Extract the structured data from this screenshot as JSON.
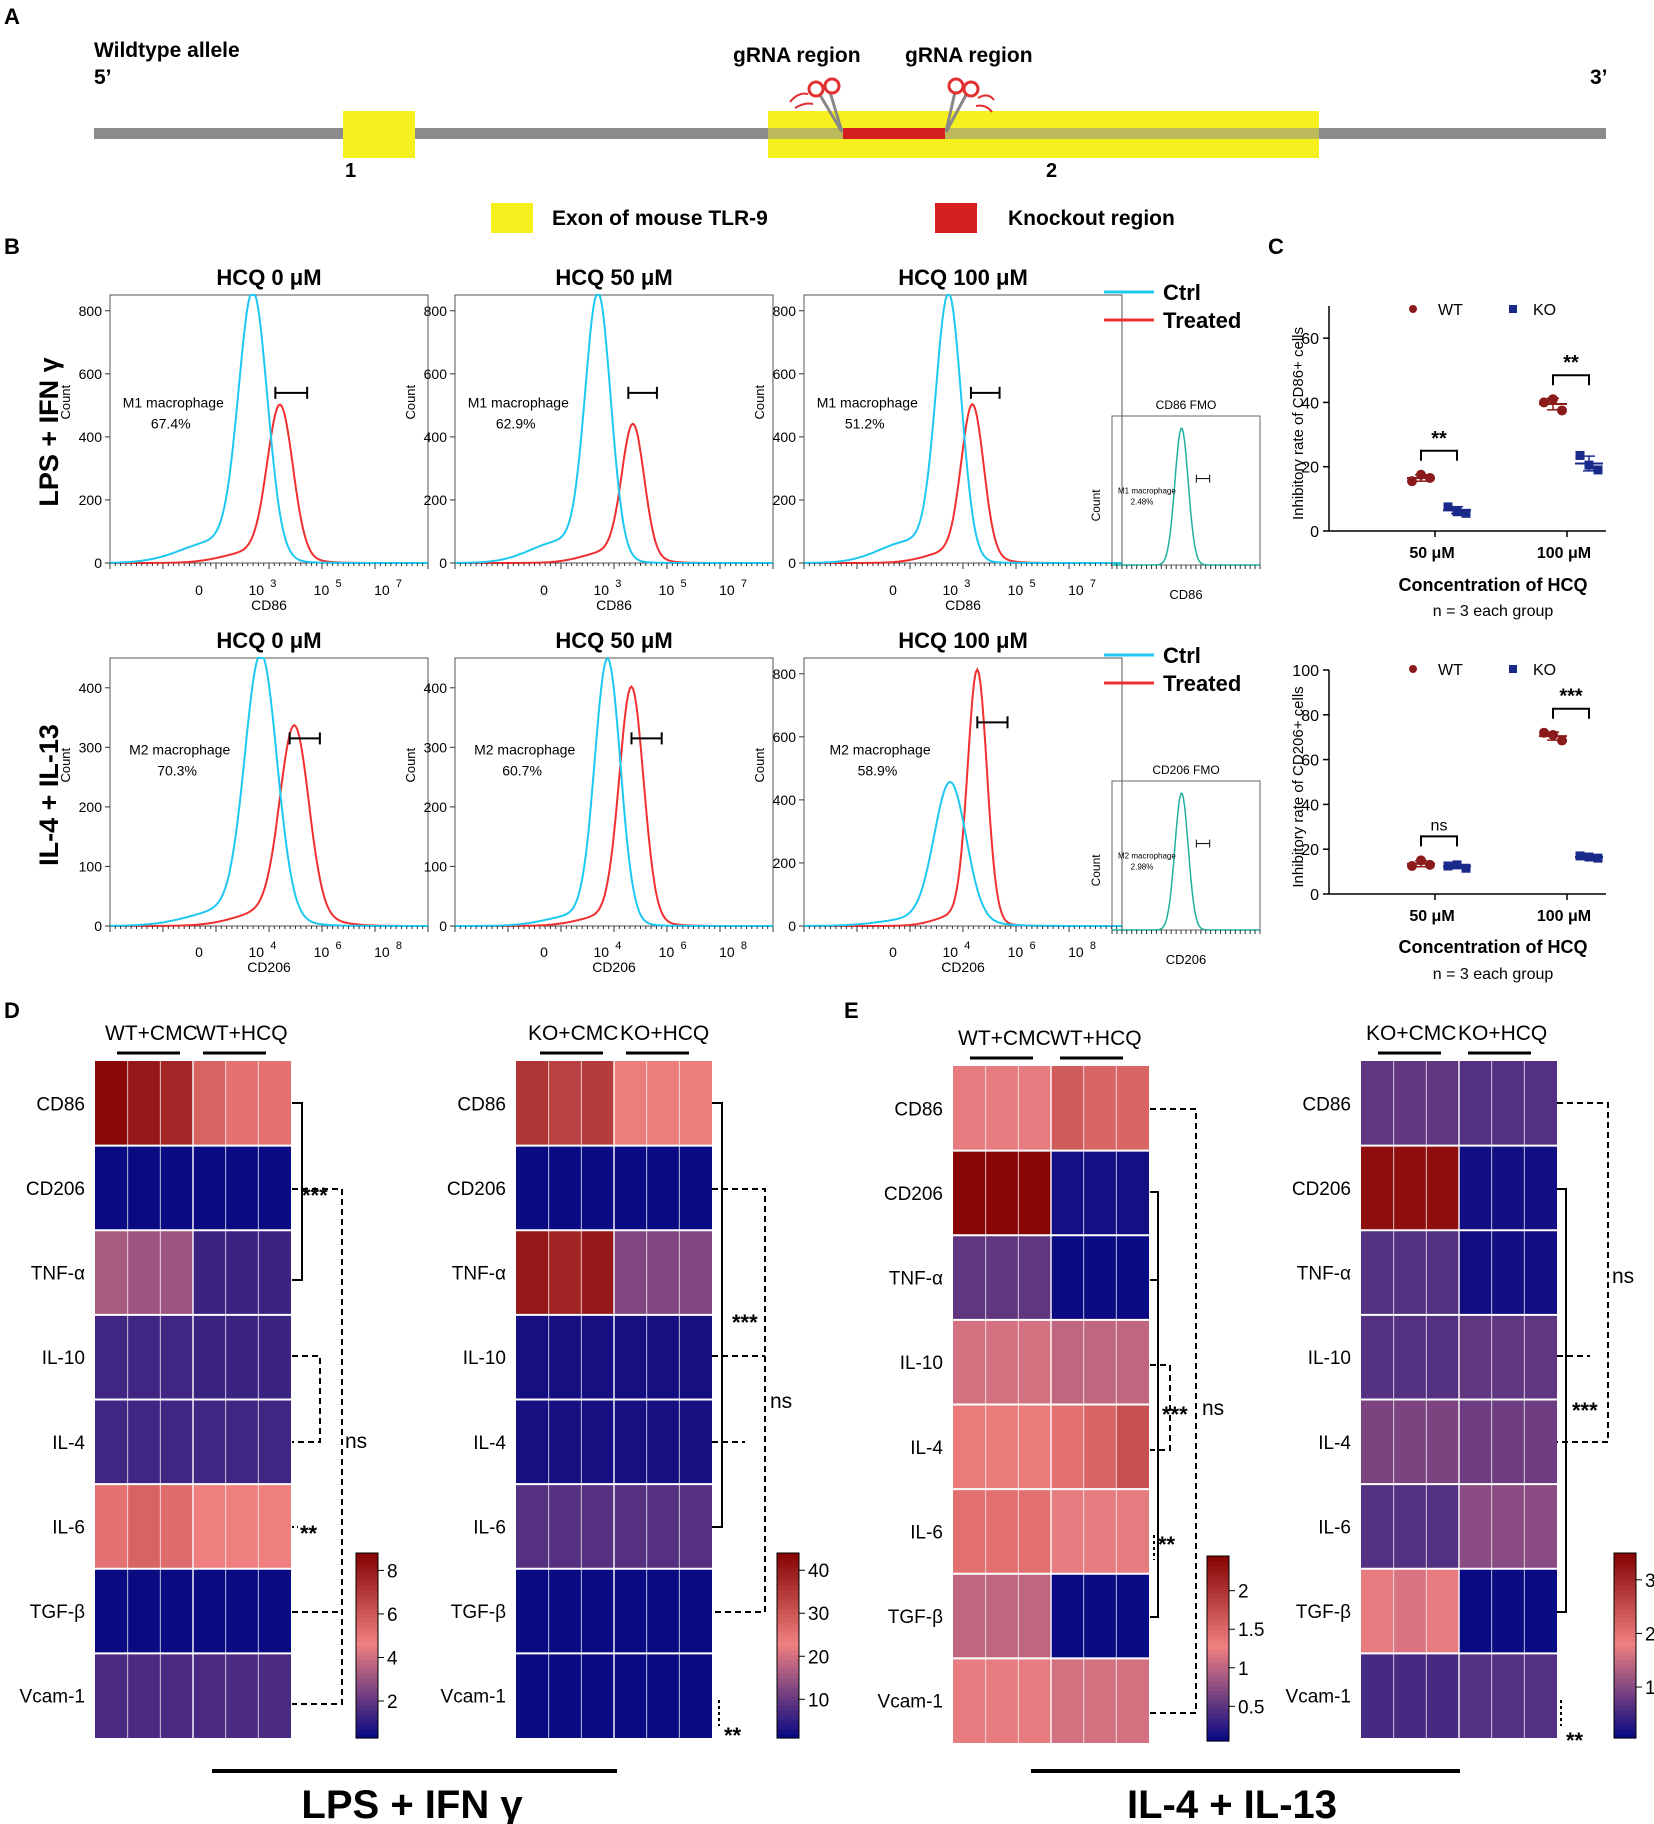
{
  "panel_letters": {
    "a": "A",
    "b": "B",
    "c": "C",
    "d": "D",
    "e": "E"
  },
  "panel_a": {
    "allele_label": "Wildtype allele",
    "end5": "5’",
    "end3": "3’",
    "grna_label_1": "gRNA region",
    "grna_label_2": "gRNA region",
    "exon_number_1": "1",
    "exon_number_2": "2",
    "legend_exon": "Exon of mouse TLR-9",
    "legend_knockout": "Knockout region",
    "colors": {
      "backbone": "#8c8c8c",
      "exon": "#f5f01e",
      "knockout": "#d62020",
      "scissors": "#e03030"
    }
  },
  "panel_b": {
    "colors": {
      "ctrl": "#1ec8f0",
      "treated": "#f03030",
      "fmo": "#20b0a0"
    },
    "legend": {
      "ctrl": "Ctrl",
      "treated": "Treated"
    },
    "row_labels": [
      "LPS + IFN γ",
      "IL-4 + IL-13"
    ],
    "count_label": "Count",
    "rows": [
      {
        "marker": "CD86",
        "titles": [
          "HCQ 0 μM",
          "HCQ 50 μM",
          "HCQ 100 μM"
        ],
        "gate_names": [
          "M1 macrophage",
          "M1 macrophage",
          "M1 macrophage"
        ],
        "gate_pcts": [
          "67.4%",
          "62.9%",
          "51.2%"
        ],
        "y_ticks": [
          "0",
          "200",
          "400",
          "600",
          "800"
        ],
        "x_ticks": [
          "0",
          "10",
          "10",
          "10"
        ],
        "x_exps": [
          "",
          "3",
          "5",
          "7"
        ],
        "fmo": {
          "title": "CD86 FMO",
          "gate_name": "M1 macrophage",
          "gate_pct": "2.48%",
          "xlabel": "CD86",
          "ylabel": "Count"
        }
      },
      {
        "marker": "CD206",
        "titles": [
          "HCQ 0 μM",
          "HCQ 50 μM",
          "HCQ 100 μM"
        ],
        "gate_names": [
          "M2 macrophage",
          "M2 macrophage",
          "M2 macrophage"
        ],
        "gate_pcts": [
          "70.3%",
          "60.7%",
          "58.9%"
        ],
        "y_ticks_a": [
          "0",
          "100",
          "200",
          "300",
          "400"
        ],
        "y_ticks_b": [
          "0",
          "200",
          "400",
          "600",
          "800"
        ],
        "x_ticks": [
          "0",
          "10",
          "10",
          "10"
        ],
        "x_exps": [
          "",
          "4",
          "6",
          "8"
        ],
        "fmo": {
          "title": "CD206 FMO",
          "gate_name": "M2 macrophage",
          "gate_pct": "2.98%",
          "xlabel": "CD206",
          "ylabel": "Count"
        }
      }
    ]
  },
  "panel_d_labels": {
    "wt_cmc": "WT+CMC",
    "wt_hcq": "WT+HCQ",
    "ko_cmc": "KO+CMC",
    "ko_hcq": "KO+HCQ"
  },
  "heatmap_rows": [
    "CD86",
    "CD206",
    "TNF-α",
    "IL-10",
    "IL-4",
    "IL-6",
    "TGF-β",
    "Vcam-1"
  ],
  "sig": {
    "three": "***",
    "two": "**",
    "ns": "ns"
  },
  "condition_labels": {
    "lps": "LPS + IFN γ",
    "il4": "IL-4 + IL-13"
  },
  "heatmap_colors": {
    "low": "#0a0a82",
    "mid": "#f08080",
    "high": "#820000"
  },
  "chart_data": [
    {
      "type": "scatter",
      "title": "Inhibitory rate of CD86+ cells (panel C, top)",
      "ylabel": "Inhibitory rate of CD86+ cells",
      "xlabel": "Concentration of HCQ",
      "note": "n = 3 each group",
      "categories": [
        "50 μM",
        "100 μM"
      ],
      "ylim": [
        0,
        70
      ],
      "y_ticks": [
        0,
        20,
        40,
        60
      ],
      "series": [
        {
          "name": "WT",
          "color": "#8b1a1a",
          "values": [
            [
              15.5,
              17.5,
              16.5
            ],
            [
              40.0,
              41.0,
              37.5
            ]
          ],
          "means": [
            16.5,
            39.5
          ]
        },
        {
          "name": "KO",
          "color": "#1a2a8b",
          "values": [
            [
              7.5,
              6.0,
              5.5
            ],
            [
              23.5,
              20.5,
              19.0
            ]
          ],
          "means": [
            6.5,
            21.0
          ]
        }
      ],
      "significance": [
        "**",
        "**"
      ]
    },
    {
      "type": "scatter",
      "title": "Inhibitory rate of CD206+ cells (panel C, bottom)",
      "ylabel": "Inhibitory rate of CD206+ cells",
      "xlabel": "Concentration of HCQ",
      "note": "n = 3 each group",
      "categories": [
        "50 μM",
        "100 μM"
      ],
      "ylim": [
        0,
        100
      ],
      "y_ticks": [
        0,
        20,
        40,
        60,
        80,
        100
      ],
      "series": [
        {
          "name": "WT",
          "color": "#8b1a1a",
          "values": [
            [
              12.5,
              15.0,
              13.0
            ],
            [
              72.0,
              71.0,
              68.5
            ]
          ],
          "means": [
            13.5,
            70.5
          ]
        },
        {
          "name": "KO",
          "color": "#1a2a8b",
          "values": [
            [
              12.5,
              13.0,
              11.5
            ],
            [
              17.0,
              16.5,
              16.0
            ]
          ],
          "means": [
            12.3,
            16.5
          ]
        }
      ],
      "significance": [
        "ns",
        "***"
      ]
    },
    {
      "type": "heatmap",
      "title": "WT LPS + IFN γ (panel D, left)",
      "columns": [
        "WT+CMC",
        "WT+CMC",
        "WT+CMC",
        "WT+HCQ",
        "WT+HCQ",
        "WT+HCQ"
      ],
      "rows": [
        "CD86",
        "CD206",
        "TNF-α",
        "IL-10",
        "IL-4",
        "IL-6",
        "TGF-β",
        "Vcam-1"
      ],
      "values": [
        [
          8.5,
          8.0,
          7.5,
          5.5,
          5.0,
          5.0
        ],
        [
          0.3,
          0.3,
          0.3,
          0.3,
          0.3,
          0.3
        ],
        [
          3.2,
          3.0,
          3.0,
          1.2,
          1.2,
          1.2
        ],
        [
          1.3,
          1.3,
          1.3,
          1.2,
          1.2,
          1.2
        ],
        [
          1.3,
          1.3,
          1.3,
          1.3,
          1.3,
          1.3
        ],
        [
          5.0,
          5.5,
          5.2,
          4.6,
          4.6,
          4.6
        ],
        [
          0.3,
          0.3,
          0.3,
          0.3,
          0.3,
          0.3
        ],
        [
          1.5,
          1.5,
          1.5,
          1.5,
          1.5,
          1.5
        ]
      ],
      "colorbar": {
        "min": 0.3,
        "max": 8.8,
        "ticks": [
          2,
          4,
          6,
          8
        ]
      }
    },
    {
      "type": "heatmap",
      "title": "KO LPS + IFN γ (panel D, right)",
      "columns": [
        "KO+CMC",
        "KO+CMC",
        "KO+CMC",
        "KO+HCQ",
        "KO+HCQ",
        "KO+HCQ"
      ],
      "rows": [
        "CD86",
        "CD206",
        "TNF-α",
        "IL-10",
        "IL-4",
        "IL-6",
        "TGF-β",
        "Vcam-1"
      ],
      "values": [
        [
          35,
          33,
          34,
          23,
          23,
          23
        ],
        [
          1,
          1,
          1,
          1,
          1,
          1
        ],
        [
          40,
          38,
          40,
          12,
          12,
          12
        ],
        [
          2,
          2,
          2,
          2,
          2,
          2
        ],
        [
          2,
          2,
          2,
          2,
          2,
          2
        ],
        [
          8,
          8,
          8,
          8,
          8,
          8
        ],
        [
          1,
          1,
          1,
          1,
          1,
          1
        ],
        [
          1,
          1,
          1,
          1,
          1,
          1
        ]
      ],
      "colorbar": {
        "min": 1,
        "max": 44,
        "ticks": [
          10,
          20,
          30,
          40
        ]
      }
    },
    {
      "type": "heatmap",
      "title": "WT IL-4 + IL-13 (panel E, left)",
      "columns": [
        "WT+CMC",
        "WT+CMC",
        "WT+CMC",
        "WT+HCQ",
        "WT+HCQ",
        "WT+HCQ"
      ],
      "rows": [
        "CD86",
        "CD206",
        "TNF-α",
        "IL-10",
        "IL-4",
        "IL-6",
        "TGF-β",
        "Vcam-1"
      ],
      "values": [
        [
          1.2,
          1.2,
          1.2,
          1.6,
          1.5,
          1.5
        ],
        [
          2.4,
          2.4,
          2.4,
          0.1,
          0.1,
          0.1
        ],
        [
          0.5,
          0.5,
          0.5,
          0.05,
          0.05,
          0.05
        ],
        [
          1.1,
          1.1,
          1.1,
          1.0,
          1.0,
          1.0
        ],
        [
          1.3,
          1.3,
          1.3,
          1.4,
          1.5,
          1.7
        ],
        [
          1.4,
          1.4,
          1.4,
          1.2,
          1.2,
          1.2
        ],
        [
          1.0,
          1.0,
          1.0,
          0.05,
          0.05,
          0.05
        ],
        [
          1.2,
          1.2,
          1.2,
          1.1,
          1.1,
          1.1
        ]
      ],
      "colorbar": {
        "min": 0.05,
        "max": 2.45,
        "ticks": [
          0.5,
          1.0,
          1.5,
          2.0
        ]
      }
    },
    {
      "type": "heatmap",
      "title": "KO IL-4 + IL-13 (panel E, right)",
      "columns": [
        "KO+CMC",
        "KO+CMC",
        "KO+CMC",
        "KO+HCQ",
        "KO+HCQ",
        "KO+HCQ"
      ],
      "rows": [
        "CD86",
        "CD206",
        "TNF-α",
        "IL-10",
        "IL-4",
        "IL-6",
        "TGF-β",
        "Vcam-1"
      ],
      "values": [
        [
          0.7,
          0.7,
          0.7,
          0.6,
          0.6,
          0.6
        ],
        [
          3.3,
          3.3,
          3.3,
          0.1,
          0.1,
          0.1
        ],
        [
          0.6,
          0.6,
          0.6,
          0.1,
          0.1,
          0.1
        ],
        [
          0.6,
          0.6,
          0.6,
          0.7,
          0.7,
          0.7
        ],
        [
          0.9,
          0.9,
          0.9,
          0.8,
          0.8,
          0.8
        ],
        [
          0.6,
          0.6,
          0.6,
          1.0,
          1.0,
          1.0
        ],
        [
          1.7,
          1.6,
          1.7,
          0.05,
          0.05,
          0.05
        ],
        [
          0.5,
          0.5,
          0.5,
          0.6,
          0.6,
          0.6
        ]
      ],
      "colorbar": {
        "min": 0.05,
        "max": 3.5,
        "ticks": [
          1,
          2,
          3
        ]
      }
    }
  ]
}
